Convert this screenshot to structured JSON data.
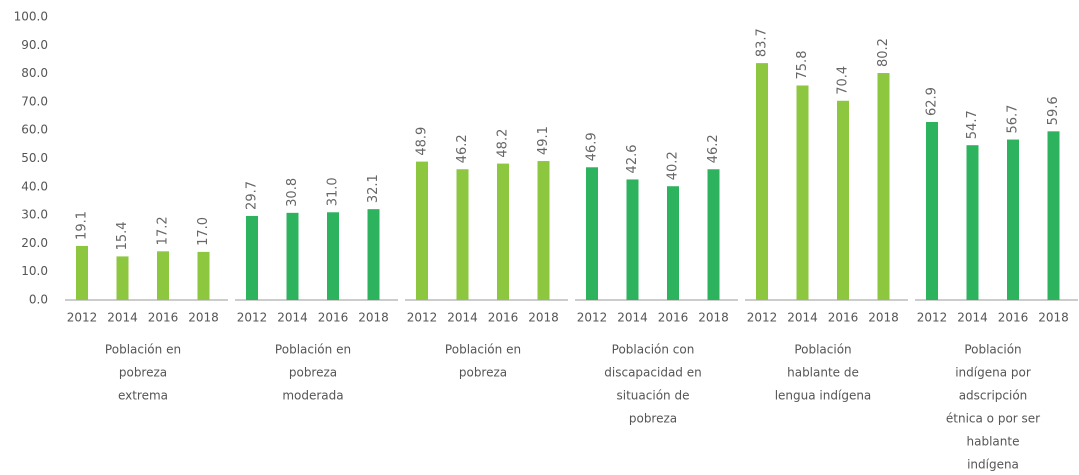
{
  "chart_data": {
    "type": "bar",
    "ylim": [
      0,
      100
    ],
    "yticks": [
      {
        "value": 0,
        "label": "0.0"
      },
      {
        "value": 10,
        "label": "10.0"
      },
      {
        "value": 20,
        "label": "20.0"
      },
      {
        "value": 30,
        "label": "30.0"
      },
      {
        "value": 40,
        "label": "40.0"
      },
      {
        "value": 50,
        "label": "50.0"
      },
      {
        "value": 60,
        "label": "60.0"
      },
      {
        "value": 70,
        "label": "70.0"
      },
      {
        "value": 80,
        "label": "80.0"
      },
      {
        "value": 90,
        "label": "90.0"
      },
      {
        "value": 100,
        "label": "100.0"
      }
    ],
    "groups": [
      {
        "label": [
          "Población en",
          "pobreza",
          "extrema"
        ],
        "color": "#8dc63f",
        "categories": [
          "2012",
          "2014",
          "2016",
          "2018"
        ],
        "values": [
          19.1,
          15.4,
          17.2,
          17.0
        ],
        "value_labels": [
          "19.1",
          "15.4",
          "17.2",
          "17.0"
        ]
      },
      {
        "label": [
          "Población en",
          "pobreza",
          "moderada"
        ],
        "color": "#2db35d",
        "categories": [
          "2012",
          "2014",
          "2016",
          "2018"
        ],
        "values": [
          29.7,
          30.8,
          31.0,
          32.1
        ],
        "value_labels": [
          "29.7",
          "30.8",
          "31.0",
          "32.1"
        ]
      },
      {
        "label": [
          "Población en",
          "pobreza"
        ],
        "color": "#8dc63f",
        "categories": [
          "2012",
          "2014",
          "2016",
          "2018"
        ],
        "values": [
          48.9,
          46.2,
          48.2,
          49.1
        ],
        "value_labels": [
          "48.9",
          "46.2",
          "48.2",
          "49.1"
        ]
      },
      {
        "label": [
          "Población con",
          "discapacidad en",
          "situación de",
          "pobreza"
        ],
        "color": "#2db35d",
        "categories": [
          "2012",
          "2014",
          "2016",
          "2018"
        ],
        "values": [
          46.9,
          42.6,
          40.2,
          46.2
        ],
        "value_labels": [
          "46.9",
          "42.6",
          "40.2",
          "46.2"
        ]
      },
      {
        "label": [
          "Población",
          "hablante de",
          "lengua indígena"
        ],
        "color": "#8dc63f",
        "categories": [
          "2012",
          "2014",
          "2016",
          "2018"
        ],
        "values": [
          83.7,
          75.8,
          70.4,
          80.2
        ],
        "value_labels": [
          "83.7",
          "75.8",
          "70.4",
          "80.2"
        ]
      },
      {
        "label": [
          "Población",
          "indígena por",
          "adscripción",
          "étnica o por ser",
          "hablante",
          "indígena"
        ],
        "color": "#2db35d",
        "categories": [
          "2012",
          "2014",
          "2016",
          "2018"
        ],
        "values": [
          62.9,
          54.7,
          56.7,
          59.6
        ],
        "value_labels": [
          "62.9",
          "54.7",
          "56.7",
          "59.6"
        ]
      }
    ]
  }
}
